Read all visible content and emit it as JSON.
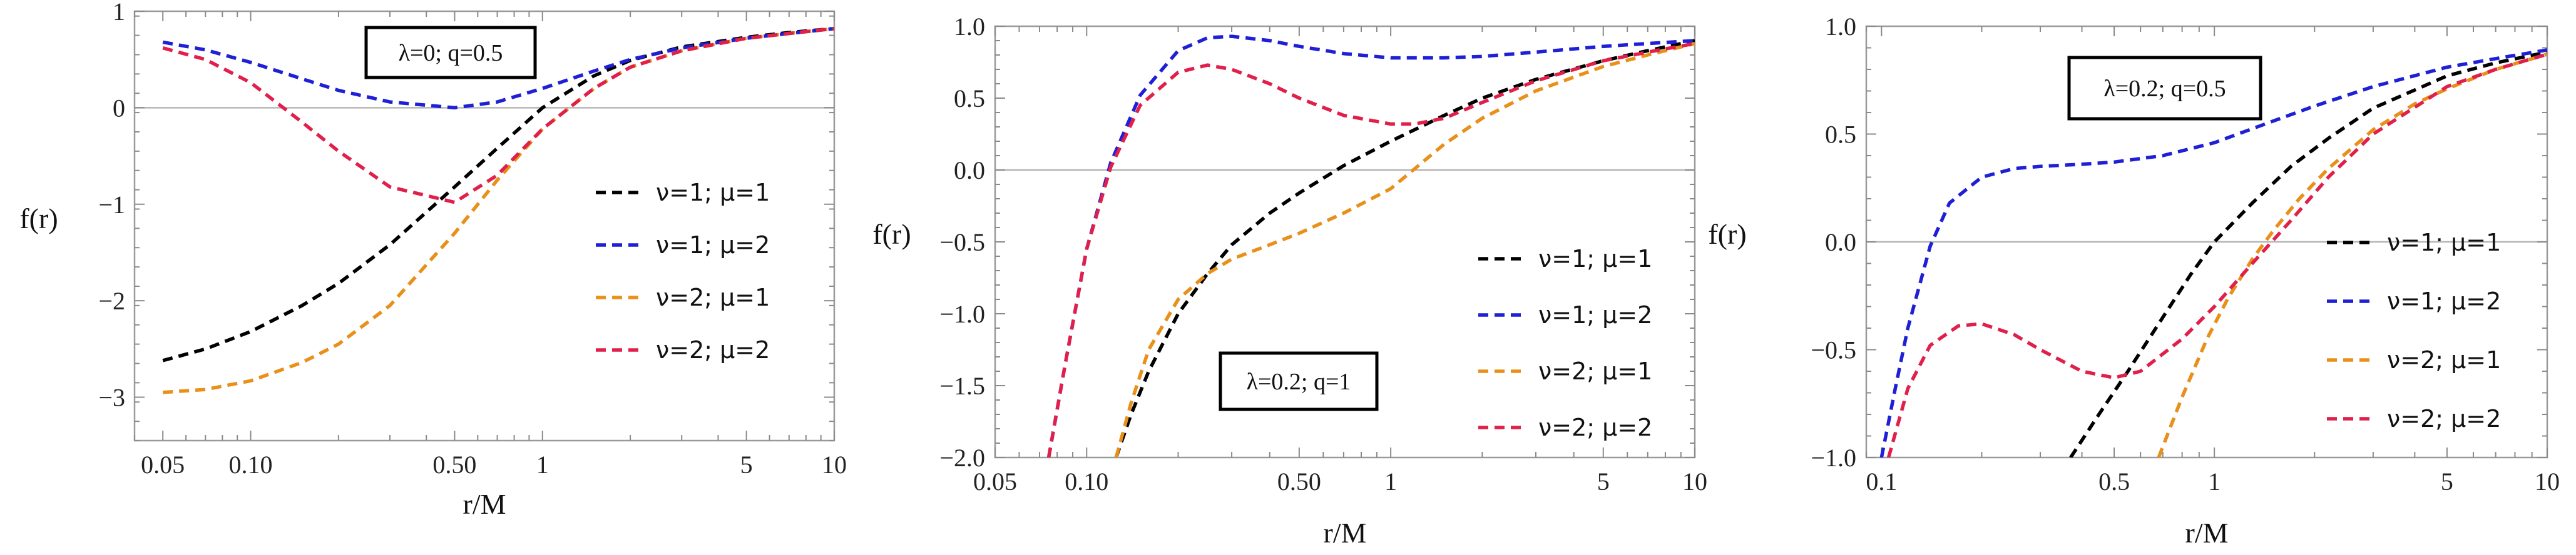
{
  "chart_data": [
    {
      "type": "line",
      "title": "",
      "xlabel": "r/M",
      "ylabel": "f(r)",
      "x_scale": "log",
      "xlim": [
        0.04,
        10
      ],
      "ylim": [
        -3.45,
        1.0
      ],
      "x_ticks": [
        0.05,
        0.1,
        0.5,
        1,
        5,
        10
      ],
      "x_tick_labels": [
        "0.05",
        "0.10",
        "0.50",
        "1",
        "5",
        "10"
      ],
      "y_ticks": [
        -3,
        -2,
        -1,
        0,
        1
      ],
      "y_tick_labels": [
        "−3",
        "−2",
        "−1",
        "0",
        "1"
      ],
      "annotation": "λ=0; q=0.5",
      "legend": [
        "ν=1; μ=1",
        "ν=1; μ=2",
        "ν=2; μ=1",
        "ν=2; μ=2"
      ],
      "series": [
        {
          "name": "ν=1; μ=1",
          "color": "#000000",
          "x": [
            0.05,
            0.07,
            0.1,
            0.15,
            0.2,
            0.3,
            0.5,
            0.7,
            1,
            1.5,
            2,
            3,
            5,
            7,
            10
          ],
          "y": [
            -2.62,
            -2.5,
            -2.32,
            -2.05,
            -1.82,
            -1.42,
            -0.82,
            -0.42,
            0.0,
            0.33,
            0.49,
            0.63,
            0.73,
            0.78,
            0.82
          ]
        },
        {
          "name": "ν=1; μ=2",
          "color": "#1f1fd6",
          "x": [
            0.05,
            0.07,
            0.1,
            0.15,
            0.2,
            0.3,
            0.5,
            0.7,
            1,
            1.5,
            2,
            3,
            5,
            7,
            10
          ],
          "y": [
            0.68,
            0.6,
            0.47,
            0.3,
            0.18,
            0.06,
            0.0,
            0.06,
            0.2,
            0.38,
            0.5,
            0.62,
            0.72,
            0.77,
            0.82
          ]
        },
        {
          "name": "ν=2; μ=1",
          "color": "#e8901a",
          "x": [
            0.05,
            0.07,
            0.1,
            0.15,
            0.2,
            0.3,
            0.5,
            0.7,
            1,
            1.5,
            2,
            3,
            5,
            7,
            10
          ],
          "y": [
            -2.95,
            -2.92,
            -2.83,
            -2.64,
            -2.45,
            -2.05,
            -1.3,
            -0.75,
            -0.22,
            0.2,
            0.42,
            0.59,
            0.72,
            0.77,
            0.82
          ]
        },
        {
          "name": "ν=2; μ=2",
          "color": "#e0204a",
          "x": [
            0.05,
            0.07,
            0.1,
            0.15,
            0.2,
            0.3,
            0.5,
            0.7,
            1,
            1.5,
            2,
            3,
            5,
            7,
            10
          ],
          "y": [
            0.62,
            0.5,
            0.26,
            -0.15,
            -0.45,
            -0.82,
            -0.98,
            -0.7,
            -0.22,
            0.2,
            0.42,
            0.59,
            0.72,
            0.77,
            0.82
          ]
        }
      ]
    },
    {
      "type": "line",
      "title": "",
      "xlabel": "r/M",
      "ylabel": "f(r)",
      "x_scale": "log",
      "xlim": [
        0.05,
        10
      ],
      "ylim": [
        -2.0,
        1.0
      ],
      "x_ticks": [
        0.05,
        0.1,
        0.5,
        1,
        5,
        10
      ],
      "x_tick_labels": [
        "0.05",
        "0.10",
        "0.50",
        "1",
        "5",
        "10"
      ],
      "y_ticks": [
        -2.0,
        -1.5,
        -1.0,
        -0.5,
        0.0,
        0.5,
        1.0
      ],
      "y_tick_labels": [
        "−2.0",
        "−1.5",
        "−1.0",
        "−0.5",
        "0.0",
        "0.5",
        "1.0"
      ],
      "annotation": "λ=0.2; q=1",
      "legend": [
        "ν=1; μ=1",
        "ν=1; μ=2",
        "ν=2; μ=1",
        "ν=2; μ=2"
      ],
      "series": [
        {
          "name": "ν=1; μ=1",
          "color": "#000000",
          "x": [
            0.125,
            0.14,
            0.16,
            0.2,
            0.25,
            0.3,
            0.4,
            0.5,
            0.7,
            1,
            1.5,
            2,
            3,
            5,
            7,
            10
          ],
          "y": [
            -2.0,
            -1.7,
            -1.4,
            -1.0,
            -0.72,
            -0.52,
            -0.3,
            -0.16,
            0.03,
            0.2,
            0.38,
            0.5,
            0.63,
            0.76,
            0.83,
            0.9
          ]
        },
        {
          "name": "ν=1; μ=2",
          "color": "#1f1fd6",
          "x": [
            0.075,
            0.085,
            0.1,
            0.12,
            0.15,
            0.2,
            0.25,
            0.3,
            0.4,
            0.5,
            0.7,
            1,
            1.5,
            2,
            3,
            5,
            7,
            10
          ],
          "y": [
            -2.0,
            -1.35,
            -0.55,
            0.05,
            0.52,
            0.83,
            0.92,
            0.93,
            0.9,
            0.86,
            0.81,
            0.78,
            0.78,
            0.79,
            0.82,
            0.86,
            0.88,
            0.9
          ]
        },
        {
          "name": "ν=2; μ=1",
          "color": "#e8901a",
          "x": [
            0.125,
            0.14,
            0.16,
            0.2,
            0.25,
            0.3,
            0.4,
            0.5,
            0.7,
            1,
            1.5,
            2,
            3,
            5,
            7,
            10
          ],
          "y": [
            -2.0,
            -1.62,
            -1.25,
            -0.9,
            -0.72,
            -0.62,
            -0.52,
            -0.44,
            -0.3,
            -0.13,
            0.18,
            0.36,
            0.55,
            0.72,
            0.8,
            0.88
          ]
        },
        {
          "name": "ν=2; μ=2",
          "color": "#e0204a",
          "x": [
            0.075,
            0.085,
            0.1,
            0.12,
            0.15,
            0.2,
            0.25,
            0.3,
            0.4,
            0.5,
            0.7,
            1,
            1.2,
            1.5,
            2,
            3,
            5,
            7,
            10
          ],
          "y": [
            -2.0,
            -1.35,
            -0.55,
            0.02,
            0.45,
            0.68,
            0.73,
            0.7,
            0.6,
            0.5,
            0.38,
            0.32,
            0.32,
            0.36,
            0.47,
            0.62,
            0.76,
            0.82,
            0.88
          ]
        }
      ]
    },
    {
      "type": "line",
      "title": "",
      "xlabel": "r/M",
      "ylabel": "f(r)",
      "x_scale": "log",
      "xlim": [
        0.09,
        10
      ],
      "ylim": [
        -1.0,
        1.0
      ],
      "x_ticks": [
        0.1,
        0.5,
        1,
        5,
        10
      ],
      "x_tick_labels": [
        "0.1",
        "0.5",
        "1",
        "5",
        "10"
      ],
      "y_ticks": [
        -1.0,
        -0.5,
        0.0,
        0.5,
        1.0
      ],
      "y_tick_labels": [
        "−1.0",
        "−0.5",
        "0.0",
        "0.5",
        "1.0"
      ],
      "annotation": "λ=0.2; q=0.5",
      "legend": [
        "ν=1; μ=1",
        "ν=1; μ=2",
        "ν=2; μ=1",
        "ν=2; μ=2"
      ],
      "series": [
        {
          "name": "ν=1; μ=1",
          "color": "#000000",
          "x": [
            0.37,
            0.45,
            0.55,
            0.7,
            0.85,
            1,
            1.3,
            1.7,
            2.2,
            3,
            5,
            7,
            10
          ],
          "y": [
            -1.0,
            -0.8,
            -0.6,
            -0.35,
            -0.15,
            0.0,
            0.18,
            0.35,
            0.48,
            0.62,
            0.77,
            0.83,
            0.88
          ]
        },
        {
          "name": "ν=1; μ=2",
          "color": "#1f1fd6",
          "x": [
            0.1,
            0.11,
            0.12,
            0.14,
            0.16,
            0.2,
            0.25,
            0.3,
            0.4,
            0.5,
            0.7,
            1,
            1.5,
            2,
            3,
            5,
            7,
            10
          ],
          "y": [
            -1.0,
            -0.68,
            -0.4,
            -0.02,
            0.18,
            0.3,
            0.34,
            0.35,
            0.36,
            0.37,
            0.4,
            0.46,
            0.56,
            0.63,
            0.72,
            0.81,
            0.85,
            0.89
          ]
        },
        {
          "name": "ν=2; μ=1",
          "color": "#e8901a",
          "x": [
            0.68,
            0.8,
            0.95,
            1.1,
            1.3,
            1.5,
            1.8,
            2.2,
            3,
            4,
            5,
            7,
            10
          ],
          "y": [
            -1.0,
            -0.72,
            -0.45,
            -0.26,
            -0.08,
            0.05,
            0.2,
            0.34,
            0.52,
            0.64,
            0.71,
            0.8,
            0.87
          ]
        },
        {
          "name": "ν=2; μ=2",
          "color": "#e0204a",
          "x": [
            0.105,
            0.12,
            0.14,
            0.17,
            0.2,
            0.25,
            0.3,
            0.4,
            0.5,
            0.6,
            0.8,
            1,
            1.3,
            1.7,
            2.2,
            3,
            5,
            7,
            10
          ],
          "y": [
            -1.0,
            -0.68,
            -0.48,
            -0.39,
            -0.38,
            -0.43,
            -0.5,
            -0.6,
            -0.63,
            -0.6,
            -0.45,
            -0.3,
            -0.1,
            0.1,
            0.3,
            0.5,
            0.72,
            0.8,
            0.87
          ]
        }
      ]
    }
  ]
}
